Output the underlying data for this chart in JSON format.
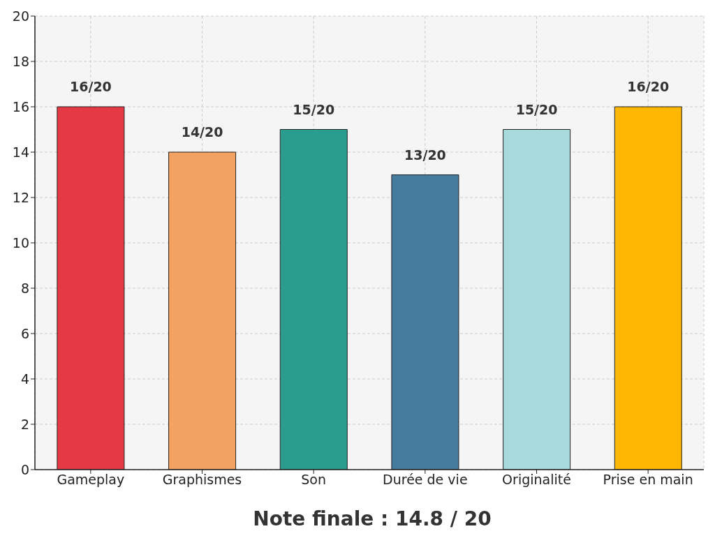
{
  "chart_data": {
    "type": "bar",
    "xlabel": "Note finale : 14.8 / 20",
    "categories": [
      "Gameplay",
      "Graphismes",
      "Son",
      "Durée de vie",
      "Originalité",
      "Prise en main"
    ],
    "values": [
      16,
      14,
      15,
      13,
      15,
      16
    ],
    "colors": [
      "#e63946",
      "#f4a261",
      "#2a9d8f",
      "#457b9d",
      "#a8dadc",
      "#ffb703"
    ],
    "value_labels": [
      "16/20",
      "14/20",
      "15/20",
      "13/20",
      "15/20",
      "16/20"
    ],
    "ylim": [
      0,
      20
    ],
    "yticks": [
      0,
      2,
      4,
      6,
      8,
      10,
      12,
      14,
      16,
      18,
      20
    ],
    "grid": true
  }
}
